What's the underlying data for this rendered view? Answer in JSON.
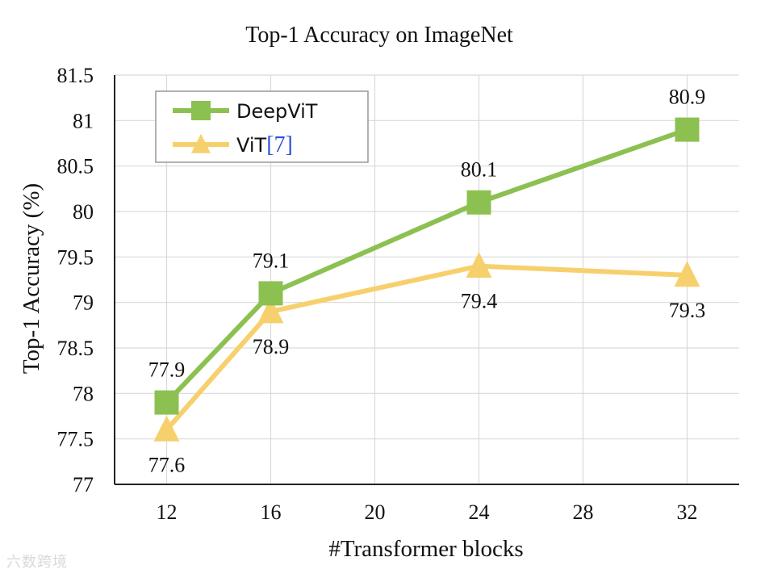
{
  "watermark": "六数跨境",
  "chart_data": {
    "type": "line",
    "title": "Top-1 Accuracy on ImageNet",
    "xlabel": "#Transformer blocks",
    "ylabel": "Top-1 Accuracy (%)",
    "x_ticks": [
      12,
      16,
      20,
      24,
      28,
      32
    ],
    "xlim": [
      10,
      34
    ],
    "ylim": [
      77,
      81.5
    ],
    "y_ticks": [
      77,
      77.5,
      78,
      78.5,
      79,
      79.5,
      80,
      80.5,
      81,
      81.5
    ],
    "y_tick_labels": [
      "77",
      "77.5",
      "78",
      "78.5",
      "79",
      "79.5",
      "80",
      "80.5",
      "81",
      "81.5"
    ],
    "grid": true,
    "legend_position": "top-left",
    "series": [
      {
        "name": "DeepViT",
        "cite": "",
        "color": "#8cc152",
        "marker": "square",
        "x": [
          12,
          16,
          24,
          32
        ],
        "y": [
          77.9,
          79.1,
          80.1,
          80.9
        ],
        "labels": [
          "77.9",
          "79.1",
          "80.1",
          "80.9"
        ],
        "label_side": "above"
      },
      {
        "name": "ViT",
        "cite": "[7]",
        "color": "#f7d06e",
        "marker": "triangle",
        "x": [
          12,
          16,
          24,
          32
        ],
        "y": [
          77.6,
          78.9,
          79.4,
          79.3
        ],
        "labels": [
          "77.6",
          "78.9",
          "79.4",
          "79.3"
        ],
        "label_side": "below"
      }
    ]
  }
}
